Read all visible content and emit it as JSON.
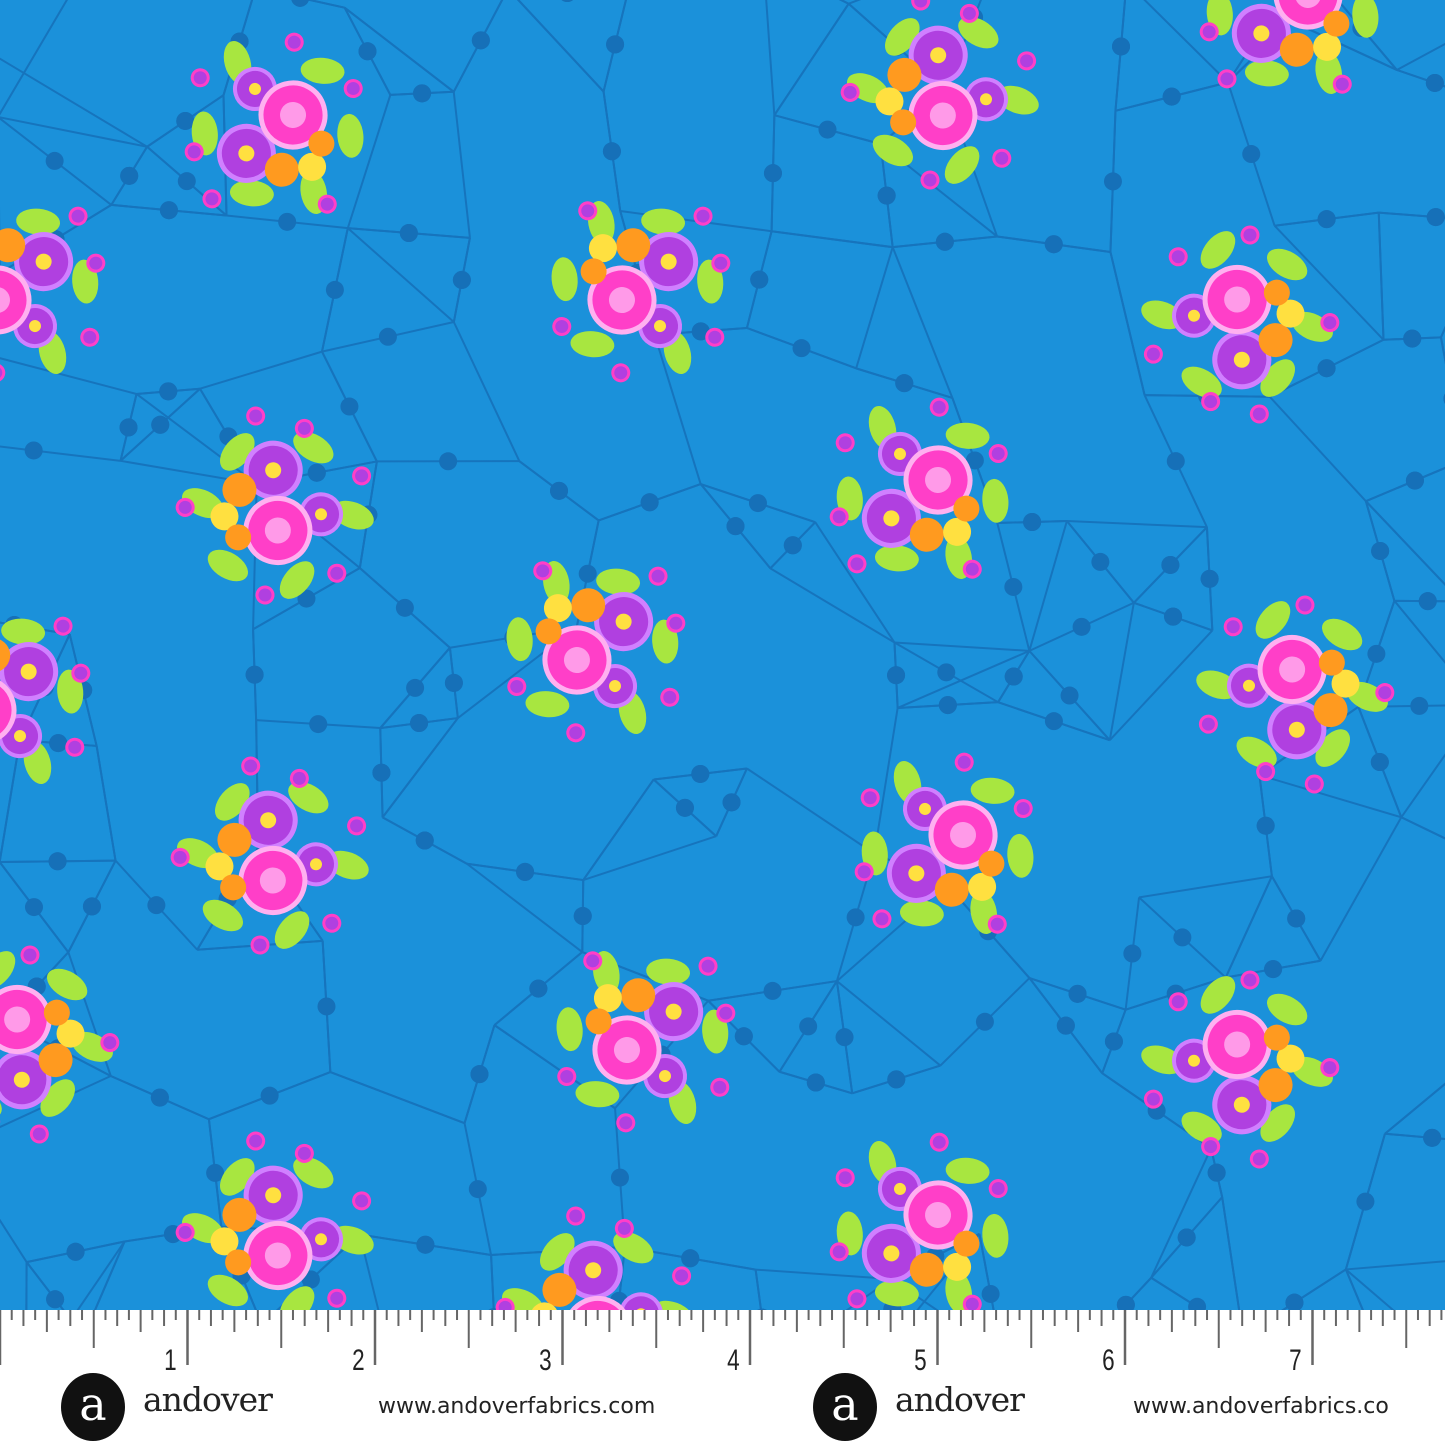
{
  "fabric": {
    "background_color": "#1b91da",
    "line_color": "#1670b8",
    "motif": "floral-bouquet",
    "flower_colors": [
      "#ff3fc8",
      "#b040e0",
      "#ff9a1f",
      "#ffe040",
      "#a8e640"
    ]
  },
  "ruler": {
    "labels": [
      "1",
      "2",
      "3",
      "4",
      "5",
      "6",
      "7"
    ],
    "logos": [
      {
        "brand": "andover",
        "url": "www.andoverfabrics.com"
      },
      {
        "brand": "andover",
        "url": "www.andoverfabrics.co"
      }
    ]
  }
}
